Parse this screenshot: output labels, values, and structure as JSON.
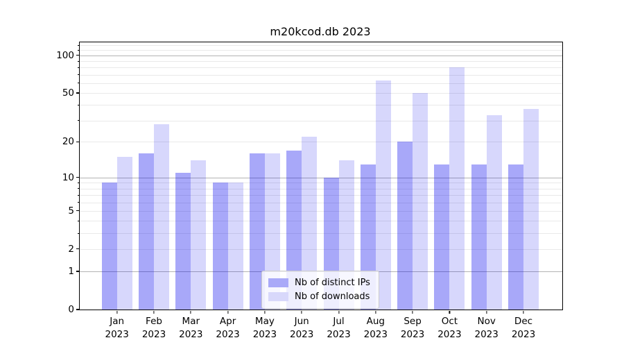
{
  "figure_title": "m20kcod.db 2023",
  "chart_data": {
    "type": "bar",
    "title": "m20kcod.db 2023",
    "xlabel": "",
    "ylabel": "",
    "categories": [
      "Jan",
      "Feb",
      "Mar",
      "Apr",
      "May",
      "Jun",
      "Jul",
      "Aug",
      "Sep",
      "Oct",
      "Nov",
      "Dec"
    ],
    "category_year": "2023",
    "series": [
      {
        "name": "Nb of distinct IPs",
        "legend_color": "#a9a9f8",
        "fill": "rgba(0,0,238,0.34)",
        "values": [
          9,
          16,
          11,
          9,
          16,
          17,
          10,
          13,
          20,
          13,
          13,
          13
        ]
      },
      {
        "name": "Nb of downloads",
        "legend_color": "#d8d8fb",
        "fill": "rgba(0,0,238,0.155)",
        "values": [
          15,
          28,
          14,
          9,
          16,
          22,
          14,
          63,
          50,
          80,
          33,
          37
        ]
      }
    ],
    "yscale": "log1p",
    "ylim": [
      0,
      127
    ],
    "yticks_labeled": [
      0,
      1,
      2,
      5,
      10,
      20,
      50,
      100
    ],
    "ygrid_major": [
      1,
      10,
      100
    ],
    "ygrid_minor": [
      2,
      3,
      4,
      5,
      6,
      7,
      8,
      9,
      20,
      30,
      40,
      50,
      60,
      70,
      80,
      90,
      110,
      120
    ],
    "grid": "horizontal",
    "legend": {
      "position": "lower center",
      "items": [
        "Nb of distinct IPs",
        "Nb of downloads"
      ]
    },
    "colors": {
      "major_grid": "#b3b3b3",
      "minor_grid": "#e9e9e9",
      "spine": "#000000",
      "background": "#ffffff"
    }
  }
}
